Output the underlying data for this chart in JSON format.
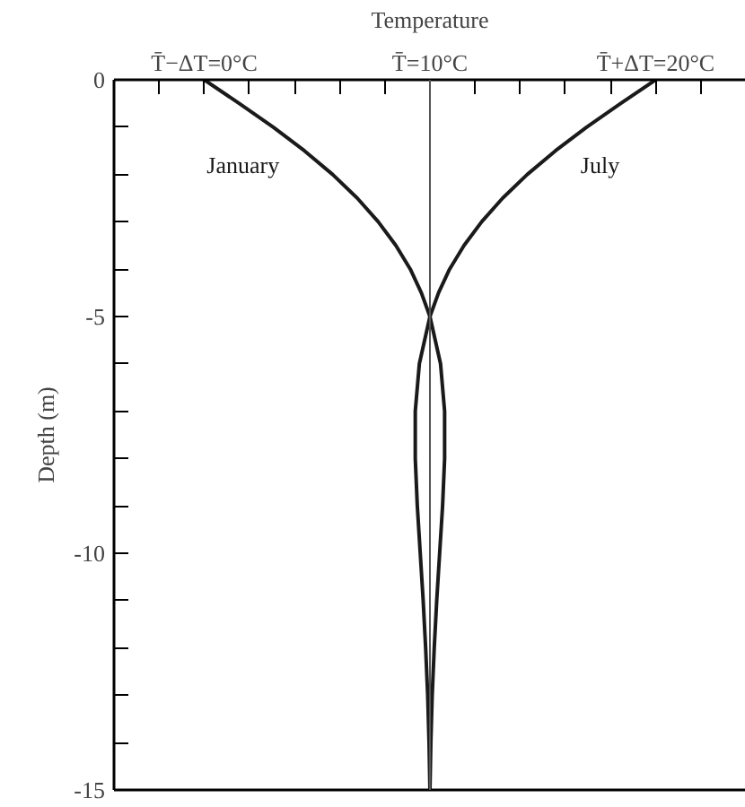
{
  "chart_data": {
    "type": "line",
    "xlabel": "Temperature",
    "ylabel": "Depth (m)",
    "series": [
      {
        "name": "January",
        "color": "#1a1a1a",
        "x": [
          0,
          1.55,
          3.06,
          4.44,
          5.69,
          6.78,
          7.71,
          8.49,
          9.13,
          9.62,
          10,
          10.47,
          10.65,
          10.65,
          10.56,
          10.43,
          10.3,
          10.19,
          10.1,
          10.04,
          10
        ],
        "values": [
          0,
          -0.5,
          -1,
          -1.5,
          -2,
          -2.5,
          -3,
          -3.5,
          -4,
          -4.5,
          -5,
          -6,
          -7,
          -8,
          -9,
          -10,
          -11,
          -12,
          -13,
          -14,
          -15
        ]
      },
      {
        "name": "July",
        "color": "#1a1a1a",
        "x": [
          20,
          18.45,
          16.94,
          15.56,
          14.31,
          13.22,
          12.29,
          11.51,
          10.87,
          10.38,
          10,
          9.53,
          9.35,
          9.35,
          9.44,
          9.57,
          9.7,
          9.81,
          9.9,
          9.96,
          10
        ],
        "values": [
          0,
          -0.5,
          -1,
          -1.5,
          -2,
          -2.5,
          -3,
          -3.5,
          -4,
          -4.5,
          -5,
          -6,
          -7,
          -8,
          -9,
          -10,
          -11,
          -12,
          -13,
          -14,
          -15
        ]
      }
    ],
    "xlim": [
      -4,
      24
    ],
    "ylim": [
      -15,
      0
    ],
    "xticks": [
      {
        "value": -2,
        "label": null
      },
      {
        "value": 0,
        "label": "T̄−ΔT=0°C"
      },
      {
        "value": 2,
        "label": null
      },
      {
        "value": 4,
        "label": null
      },
      {
        "value": 6,
        "label": null
      },
      {
        "value": 8,
        "label": null
      },
      {
        "value": 10,
        "label": "T̄=10°C"
      },
      {
        "value": 12,
        "label": null
      },
      {
        "value": 14,
        "label": null
      },
      {
        "value": 16,
        "label": null
      },
      {
        "value": 18,
        "label": null
      },
      {
        "value": 20,
        "label": "T̄+ΔT=20°C"
      },
      {
        "value": 22,
        "label": null
      }
    ],
    "yticks": [
      0,
      {
        "value": -1,
        "label": null
      },
      {
        "value": -2,
        "label": null
      },
      {
        "value": -3,
        "label": null
      },
      {
        "value": -4,
        "label": null
      },
      -5,
      {
        "value": -6,
        "label": null
      },
      {
        "value": -7,
        "label": null
      },
      {
        "value": -8,
        "label": null
      },
      {
        "value": -9,
        "label": null
      },
      -10,
      {
        "value": -11,
        "label": null
      },
      {
        "value": -12,
        "label": null
      },
      {
        "value": -13,
        "label": null
      },
      {
        "value": -14,
        "label": null
      },
      -15
    ],
    "ref_lines": [
      {
        "axis": "x",
        "value": 10,
        "color": "#555555"
      }
    ],
    "marker": "none",
    "line_style": "solid",
    "grid": false
  }
}
